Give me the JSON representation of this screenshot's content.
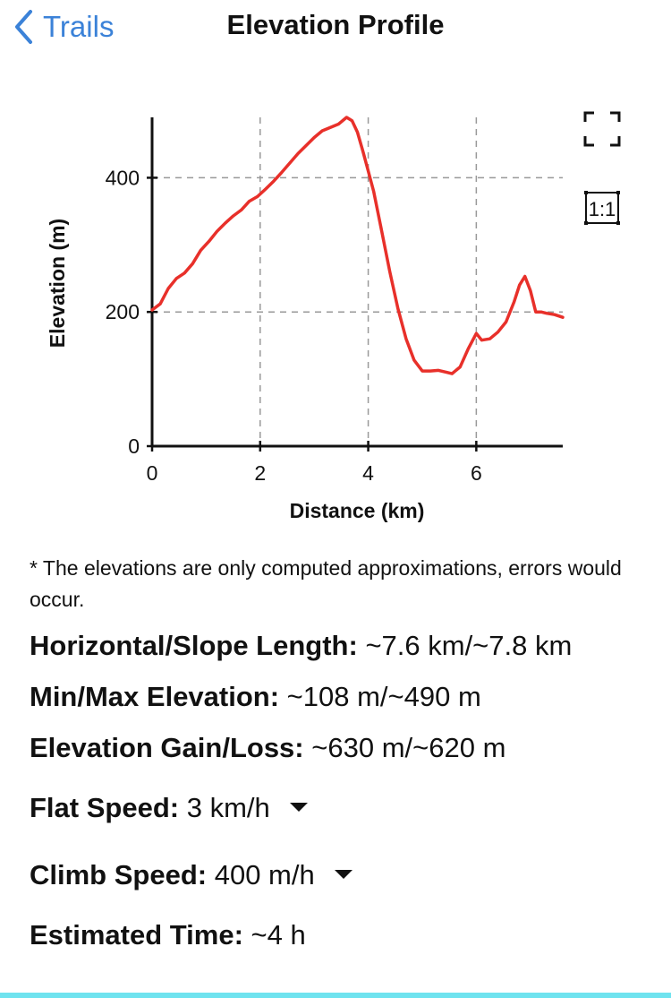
{
  "nav": {
    "back_label": "Trails",
    "title": "Elevation Profile"
  },
  "toolbar": {
    "fullscreen_icon": "fullscreen-icon",
    "aspect_label": "1:1"
  },
  "chart_data": {
    "type": "line",
    "xlabel": "Distance (km)",
    "ylabel": "Elevation (m)",
    "xlim": [
      0,
      7.6
    ],
    "ylim": [
      0,
      490
    ],
    "xticks": [
      0,
      2,
      4,
      6
    ],
    "yticks": [
      0,
      200,
      400
    ],
    "grid": true,
    "line_color": "#e8302a",
    "series": [
      {
        "x": [
          0,
          0.15,
          0.3,
          0.45,
          0.6,
          0.75,
          0.9,
          1.05,
          1.2,
          1.35,
          1.5,
          1.65,
          1.8,
          1.95,
          2.1,
          2.25,
          2.4,
          2.55,
          2.7,
          2.85,
          3.0,
          3.15,
          3.3,
          3.45,
          3.6,
          3.7,
          3.8,
          3.9,
          4.0,
          4.1,
          4.25,
          4.4,
          4.55,
          4.7,
          4.85,
          5.0,
          5.15,
          5.3,
          5.45,
          5.55,
          5.7,
          5.85,
          6.0,
          6.1,
          6.25,
          6.4,
          6.55,
          6.7,
          6.8,
          6.9,
          7.0,
          7.1,
          7.2,
          7.3,
          7.45,
          7.6
        ],
        "y": [
          203,
          212,
          235,
          250,
          258,
          272,
          292,
          305,
          320,
          332,
          343,
          352,
          365,
          372,
          383,
          395,
          408,
          422,
          436,
          448,
          460,
          470,
          475,
          480,
          490,
          485,
          468,
          440,
          410,
          380,
          320,
          260,
          205,
          160,
          128,
          112,
          112,
          113,
          110,
          108,
          118,
          145,
          168,
          158,
          160,
          170,
          185,
          215,
          240,
          253,
          232,
          200,
          200,
          198,
          196,
          192
        ]
      }
    ]
  },
  "note": "* The elevations are only computed approximations, errors would occur.",
  "stats": {
    "length_label": "Horizontal/Slope Length:",
    "length_value": "~7.6 km/~7.8 km",
    "elev_label": "Min/Max Elevation:",
    "elev_value": "~108 m/~490 m",
    "gain_label": "Elevation Gain/Loss:",
    "gain_value": "~630 m/~620 m",
    "flat_label": "Flat Speed:",
    "flat_value": "3 km/h",
    "climb_label": "Climb Speed:",
    "climb_value": "400 m/h",
    "time_label": "Estimated Time:",
    "time_value": "~4 h"
  }
}
